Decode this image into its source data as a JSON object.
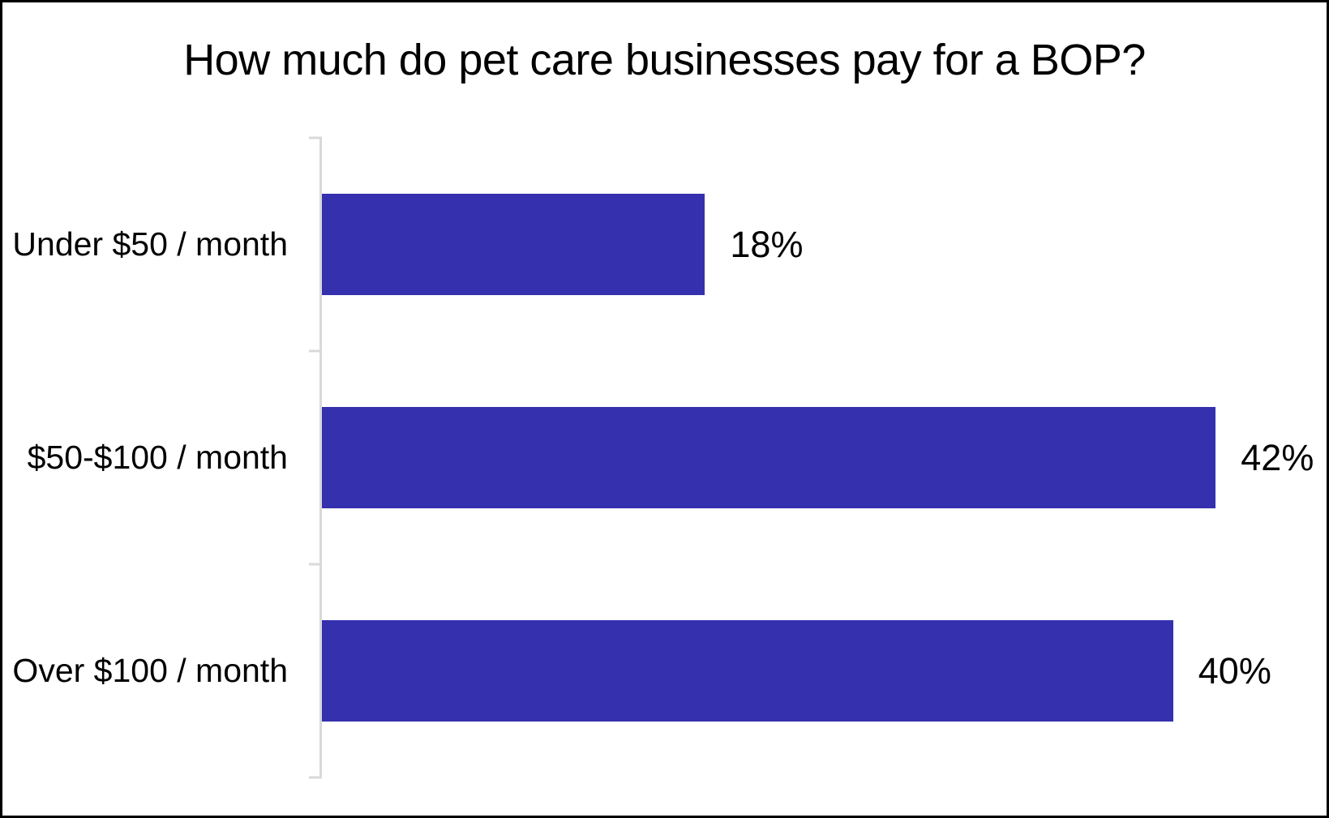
{
  "chart": {
    "bar_color": "#3430ae",
    "axis_color": "#d9d9d9",
    "text_color": "#000000",
    "frame_border_color": "#000000"
  },
  "chart_data": {
    "type": "bar",
    "orientation": "horizontal",
    "title": "How much do pet care businesses pay for a BOP?",
    "categories": [
      "Under $50 / month",
      "$50-$100 / month",
      "Over $100 / month"
    ],
    "values": [
      18,
      42,
      40
    ],
    "value_labels": [
      "18%",
      "42%",
      "40%"
    ],
    "xlabel": "",
    "ylabel": "",
    "xlim": [
      0,
      45
    ],
    "grid": false,
    "legend": false,
    "value_labels_position": "outside-end",
    "bar_color": "#3430ae"
  }
}
